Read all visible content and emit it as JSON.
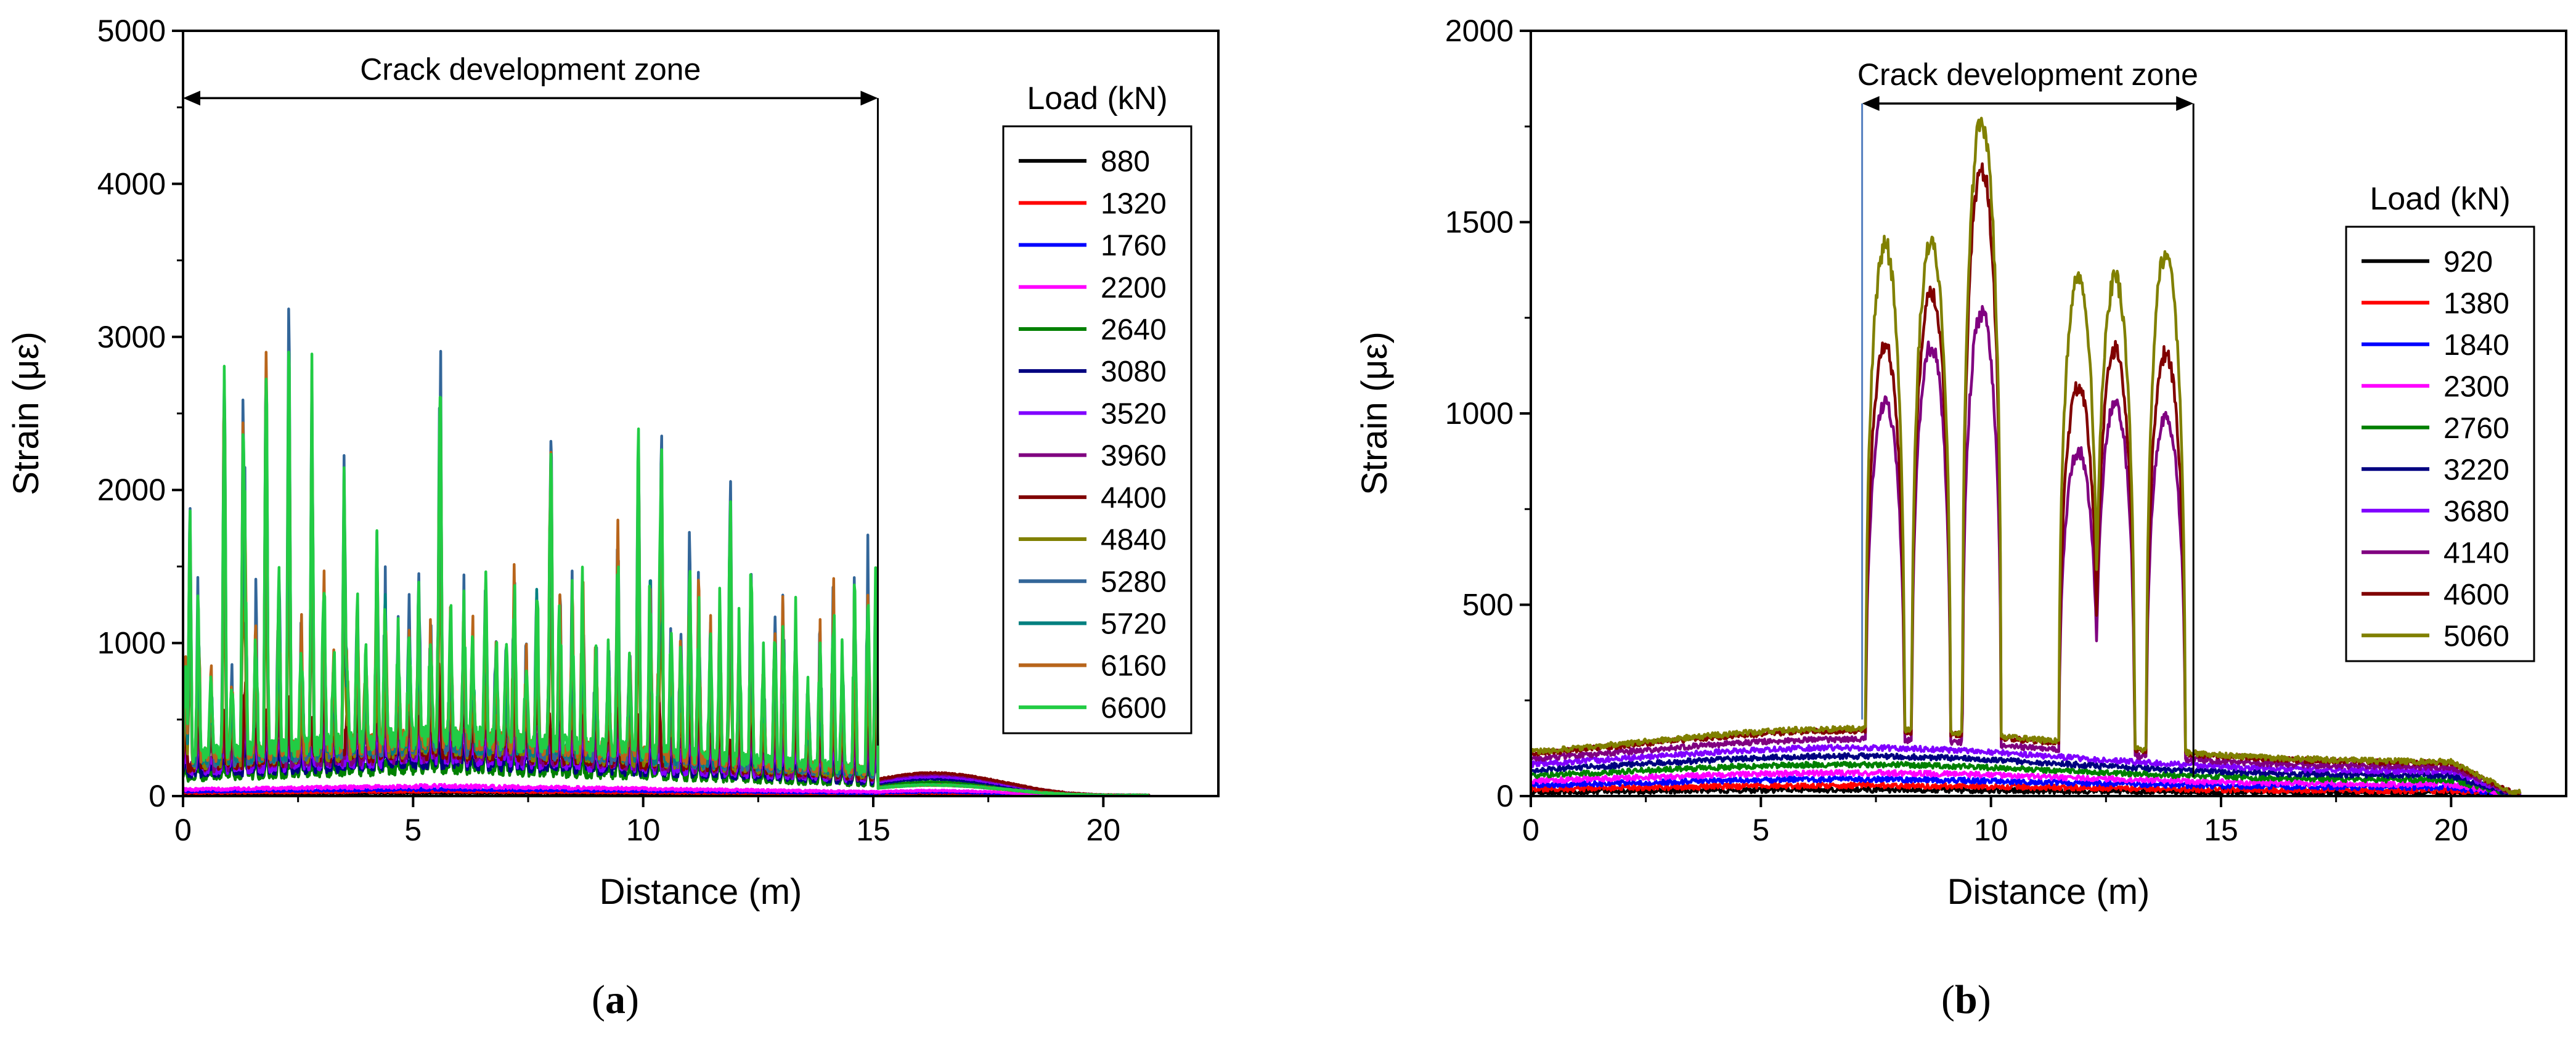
{
  "chart_data": [
    {
      "id": "a",
      "panel_label": "a",
      "type": "line",
      "xlabel": "Distance (m)",
      "ylabel": "Strain (με)",
      "xlim": [
        0,
        22.5
      ],
      "ylim": [
        0,
        5000
      ],
      "xticks": [
        0,
        5,
        10,
        15,
        20
      ],
      "xtick_labels": [
        "0",
        "5",
        "10",
        "15",
        "20"
      ],
      "yticks": [
        0,
        1000,
        2000,
        3000,
        4000,
        5000
      ],
      "ytick_labels": [
        "0",
        "1000",
        "2000",
        "3000",
        "4000",
        "5000"
      ],
      "annotation": {
        "text": "Crack development zone",
        "x_start": 0,
        "x_end": 15.1,
        "y": 4560
      },
      "legend_title": "Load (kN)",
      "legend_position": "right",
      "fiber_length": 21.0,
      "crack_zone": [
        0.0,
        15.1
      ],
      "series": [
        {
          "name": "880",
          "color": "#000000",
          "base": 20,
          "peak": 30
        },
        {
          "name": "1320",
          "color": "#ff0000",
          "base": 30,
          "peak": 40
        },
        {
          "name": "1760",
          "color": "#0000ff",
          "base": 45,
          "peak": 50
        },
        {
          "name": "2200",
          "color": "#ff00ff",
          "base": 65,
          "peak": 60
        },
        {
          "name": "2640",
          "color": "#008000",
          "base": 180,
          "peak": 320
        },
        {
          "name": "3080",
          "color": "#000080",
          "base": 220,
          "peak": 450
        },
        {
          "name": "3520",
          "color": "#8000ff",
          "base": 250,
          "peak": 620
        },
        {
          "name": "3960",
          "color": "#800080",
          "base": 280,
          "peak": 900
        },
        {
          "name": "4400",
          "color": "#800000",
          "base": 300,
          "peak": 1300
        },
        {
          "name": "4840",
          "color": "#808000",
          "base": 320,
          "peak": 1700
        },
        {
          "name": "5280",
          "color": "#336699",
          "base": 340,
          "peak": 3300
        },
        {
          "name": "5720",
          "color": "#008080",
          "base": 360,
          "peak": 2600
        },
        {
          "name": "6160",
          "color": "#b8651b",
          "base": 380,
          "peak": 3000
        },
        {
          "name": "6600",
          "color": "#22cc44",
          "base": 400,
          "peak": 3100
        }
      ]
    },
    {
      "id": "b",
      "panel_label": "b",
      "type": "line",
      "xlabel": "Distance (m)",
      "ylabel": "Strain (με)",
      "xlim": [
        0,
        22.5
      ],
      "ylim": [
        0,
        2000
      ],
      "xticks": [
        0,
        5,
        10,
        15,
        20
      ],
      "xtick_labels": [
        "0",
        "5",
        "10",
        "15",
        "20"
      ],
      "yticks": [
        0,
        500,
        1000,
        1500,
        2000
      ],
      "ytick_labels": [
        "0",
        "500",
        "1000",
        "1500",
        "2000"
      ],
      "annotation": {
        "text": "Crack development zone",
        "x_start": 7.2,
        "x_end": 14.4,
        "y": 1810
      },
      "legend_title": "Load (kN)",
      "legend_position": "right",
      "fiber_length": 21.5,
      "crack_peaks": [
        {
          "x": 7.7,
          "v4140": 1050,
          "v4600": 1200,
          "v5060": 1470
        },
        {
          "x": 8.7,
          "v4140": 1200,
          "v4600": 1350,
          "v5060": 1480
        },
        {
          "x": 9.8,
          "v4140": 1290,
          "v4600": 1680,
          "v5060": 1800
        },
        {
          "x": 11.9,
          "v4140": 920,
          "v4600": 1090,
          "v5060": 1390
        },
        {
          "x": 12.7,
          "v4140": 1050,
          "v4600": 1190,
          "v5060": 1380
        },
        {
          "x": 13.8,
          "v4140": 1010,
          "v4600": 1180,
          "v5060": 1450
        }
      ],
      "series": [
        {
          "name": "920",
          "color": "#000000",
          "base": 15
        },
        {
          "name": "1380",
          "color": "#ff0000",
          "base": 25
        },
        {
          "name": "1840",
          "color": "#0000ff",
          "base": 40
        },
        {
          "name": "2300",
          "color": "#ff00ff",
          "base": 55
        },
        {
          "name": "2760",
          "color": "#008000",
          "base": 75
        },
        {
          "name": "3220",
          "color": "#000080",
          "base": 95
        },
        {
          "name": "3680",
          "color": "#8000ff",
          "base": 115
        },
        {
          "name": "4140",
          "color": "#800080",
          "base": 135
        },
        {
          "name": "4600",
          "color": "#800000",
          "base": 155
        },
        {
          "name": "5060",
          "color": "#808000",
          "base": 160
        }
      ]
    }
  ]
}
